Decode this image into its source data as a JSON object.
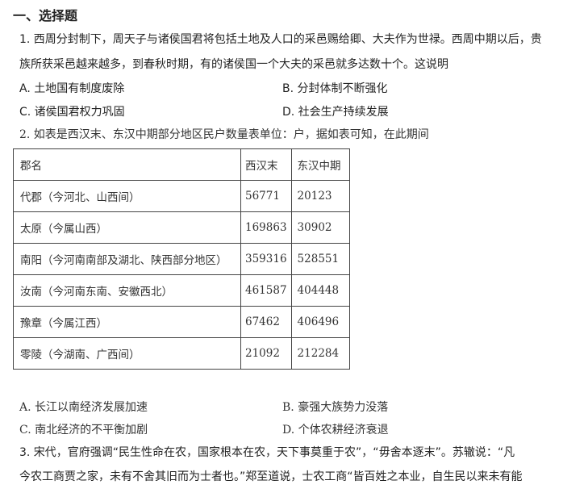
{
  "section_title": "一、选择题",
  "q1": {
    "line1": "1. 西周分封制下，周天子与诸侯国君将包括土地及人口的采邑赐给卿、大夫作为世禄。西周中期以后，贵",
    "line2": "族所获采邑越来越多，到春秋时期，有的诸侯国一个大夫的采邑就多达数十个。这说明",
    "options": [
      "A. 土地国有制度废除",
      "B. 分封体制不断强化",
      "C. 诸侯国君权力巩固",
      "D. 社会生产持续发展"
    ]
  },
  "q2": {
    "stem": "2.  如表是西汉末、东汉中期部分地区民户数量表单位：户，据如表可知，在此期间",
    "table": {
      "headers": [
        "郡名",
        "西汉末",
        "东汉中期"
      ],
      "rows": [
        [
          "代郡（今河北、山西间）",
          "56771",
          "20123"
        ],
        [
          "太原（今属山西）",
          "169863",
          "30902"
        ],
        [
          "南阳（今河南南部及湖北、陕西部分地区）",
          "359316",
          "528551"
        ],
        [
          "汝南（今河南东南、安徽西北）",
          "461587",
          "404448"
        ],
        [
          "豫章（今属江西）",
          "67462",
          "406496"
        ],
        [
          "零陵（今湖南、广西间）",
          "21092",
          "212284"
        ]
      ]
    },
    "options": [
      "A.  长江以南经济发展加速",
      "B.  豪强大族势力没落",
      "C.  南北经济的不平衡加剧",
      "D.  个体农耕经济衰退"
    ]
  },
  "q3": {
    "line1": "3. 宋代，官府强调“民生性命在农，国家根本在农，天下事莫重于农”，“毋舍本逐末”。苏辙说：“凡",
    "line2": "今农工商贾之家，未有不舍其旧而为士者也。”郑至道说，士农工商“皆百姓之本业，自生民以来未有能"
  }
}
